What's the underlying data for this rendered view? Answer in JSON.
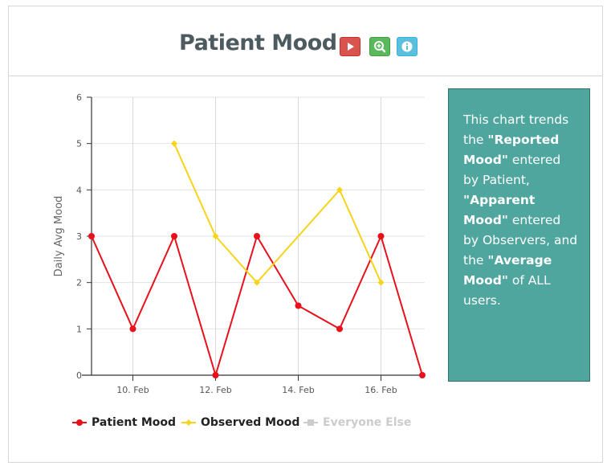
{
  "header": {
    "title": "Patient Mood",
    "buttons": [
      {
        "icon": "play-icon",
        "color": "#d9534f"
      },
      {
        "icon": "zoom-in-icon",
        "color": "#5cb85c"
      },
      {
        "icon": "info-icon",
        "color": "#5bc0de"
      }
    ]
  },
  "info": {
    "t1": "This chart trends the ",
    "b1": "\"Reported Mood\"",
    "t2": " entered by Patient, ",
    "b2": "\"Apparent Mood\"",
    "t3": " entered by Observers, and the ",
    "b3": "\"Average Mood\"",
    "t4": " of ALL users.",
    "background": "#4fa69f"
  },
  "legend": {
    "items": [
      {
        "label": "Patient Mood",
        "color": "#e8101b",
        "marker": "circle",
        "active": true
      },
      {
        "label": "Observed Mood",
        "color": "#f7d31a",
        "marker": "diamond",
        "active": true
      },
      {
        "label": "Everyone Else",
        "color": "#cccccc",
        "marker": "square",
        "active": false
      }
    ]
  },
  "chart_data": {
    "type": "line",
    "ylabel": "Daily Avg Mood",
    "xlabel": "",
    "ylim": [
      0,
      6
    ],
    "yticks": [
      0,
      1,
      2,
      3,
      4,
      5,
      6
    ],
    "xlim": [
      9,
      17
    ],
    "xticks": [
      {
        "day": 10,
        "label": "10. Feb"
      },
      {
        "day": 12,
        "label": "12. Feb"
      },
      {
        "day": 14,
        "label": "14. Feb"
      },
      {
        "day": 16,
        "label": "16. Feb"
      }
    ],
    "grid": true,
    "legend_position": "bottom-left",
    "series": [
      {
        "name": "Patient Mood",
        "color": "#e8101b",
        "marker": "circle",
        "points": [
          [
            9,
            3
          ],
          [
            10,
            1
          ],
          [
            11,
            3
          ],
          [
            12,
            0
          ],
          [
            13,
            3
          ],
          [
            14,
            1.5
          ],
          [
            15,
            1
          ],
          [
            16,
            3
          ],
          [
            17,
            0
          ]
        ]
      },
      {
        "name": "Observed Mood",
        "color": "#f7d31a",
        "marker": "diamond",
        "points": [
          [
            11,
            5
          ],
          [
            12,
            3
          ],
          [
            13,
            2
          ],
          [
            15,
            4
          ],
          [
            16,
            2
          ]
        ]
      }
    ]
  }
}
